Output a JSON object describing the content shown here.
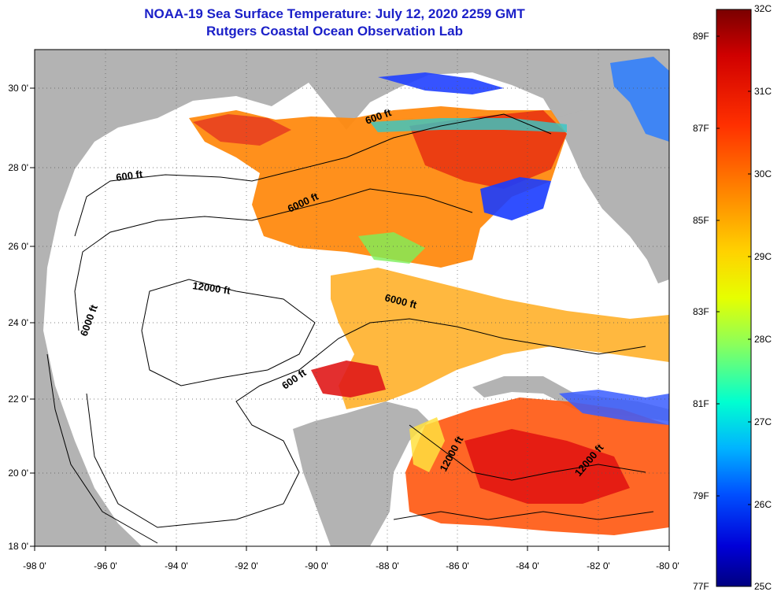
{
  "title": "NOAA-19 Sea Surface Temperature:  July 12, 2020 2259 GMT",
  "subtitle": "Rutgers Coastal Ocean Observation Lab",
  "map": {
    "lat_labels": [
      "30 0'",
      "28 0'",
      "26 0'",
      "24 0'",
      "22 0'",
      "20 0'",
      "18 0'"
    ],
    "lon_labels": [
      "-98 0'",
      "-96 0'",
      "-94 0'",
      "-92 0'",
      "-90 0'",
      "-88 0'",
      "-86 0'",
      "-84 0'",
      "-82 0'",
      "-80 0'"
    ],
    "lat_range": [
      18,
      31
    ],
    "lon_range": [
      -98,
      -80
    ],
    "contours": [
      "600 ft",
      "6000 ft",
      "12000 ft",
      "600 ft",
      "6000 ft",
      "600 ft",
      "12000 ft",
      "12000 ft",
      "6000 ft"
    ],
    "land_color": "#b3b3b3",
    "cloud_color": "#ffffff"
  },
  "colorbar": {
    "celsius": [
      "32C",
      "31C",
      "30C",
      "29C",
      "28C",
      "27C",
      "26C",
      "25C"
    ],
    "fahrenheit": [
      "89F",
      "87F",
      "85F",
      "83F",
      "81F",
      "79F",
      "77F"
    ],
    "range_c": [
      25,
      32
    ],
    "colors": [
      "#7a0000",
      "#d00000",
      "#ff3000",
      "#ff8800",
      "#ffd200",
      "#e6ff00",
      "#8cff5a",
      "#00ffd0",
      "#00b4ff",
      "#0050ff",
      "#0000d8",
      "#000080"
    ]
  }
}
